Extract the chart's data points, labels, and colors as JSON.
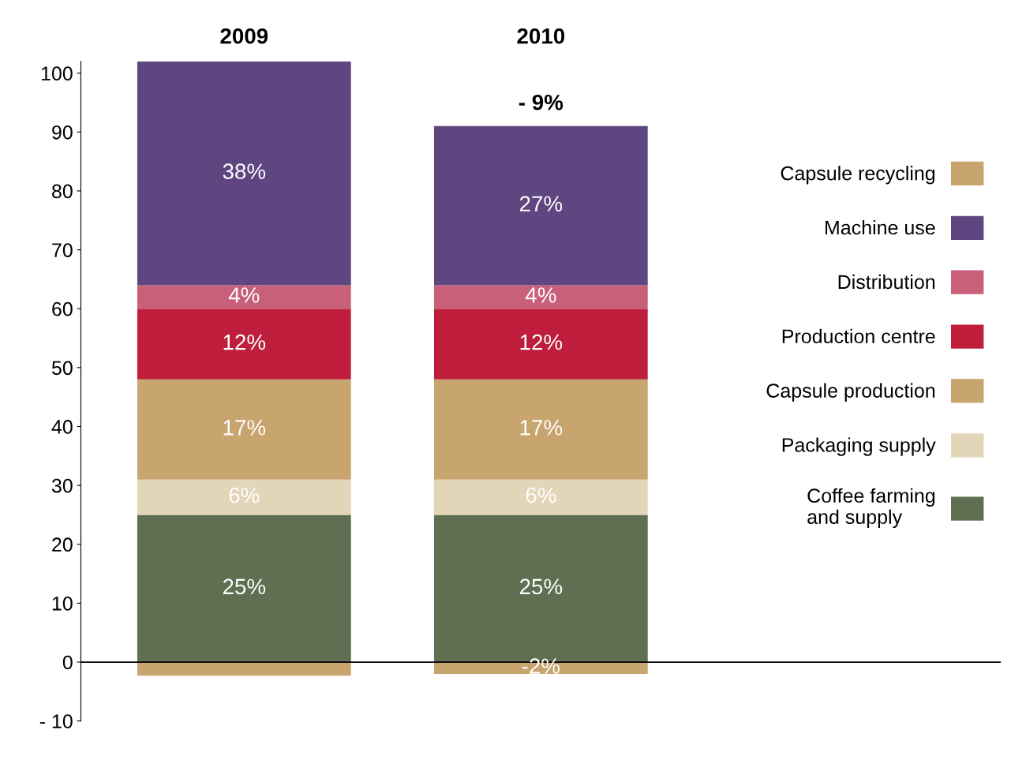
{
  "chart_data": {
    "type": "bar",
    "stacked": true,
    "categories": [
      "2009",
      "2010"
    ],
    "series": [
      {
        "name": "Coffee farming\nand supply",
        "color": "#5f7052",
        "values": [
          25,
          25
        ],
        "value_labels": [
          "25%",
          "25%"
        ]
      },
      {
        "name": "Packaging supply",
        "color": "#e3d5b8",
        "values": [
          6,
          6
        ],
        "value_labels": [
          "6%",
          "6%"
        ]
      },
      {
        "name": "Capsule production",
        "color": "#c8a46e",
        "values": [
          17,
          17
        ],
        "value_labels": [
          "17%",
          "17%"
        ]
      },
      {
        "name": "Production centre",
        "color": "#be1e3c",
        "values": [
          12,
          12
        ],
        "value_labels": [
          "12%",
          "12%"
        ]
      },
      {
        "name": "Distribution",
        "color": "#c8607a",
        "values": [
          4,
          4
        ],
        "value_labels": [
          "4%",
          "4%"
        ]
      },
      {
        "name": "Machine use",
        "color": "#5f4680",
        "values": [
          38,
          27
        ],
        "value_labels": [
          "38%",
          "27%"
        ]
      },
      {
        "name": "Capsule recycling",
        "color": "#c8a46e",
        "values": [
          -2.3,
          -2
        ],
        "value_labels": [
          null,
          "-2%"
        ]
      }
    ],
    "ylim": [
      -10,
      102
    ],
    "yticks": [
      {
        "value": -10,
        "label": "- 10"
      },
      0,
      10,
      20,
      30,
      40,
      50,
      60,
      70,
      80,
      90,
      100
    ],
    "ref_lines": [
      {
        "axis": "y",
        "value": 0,
        "color": "#000000"
      }
    ],
    "annotations": [
      "- 9%"
    ],
    "grid": false,
    "legend": "right"
  }
}
